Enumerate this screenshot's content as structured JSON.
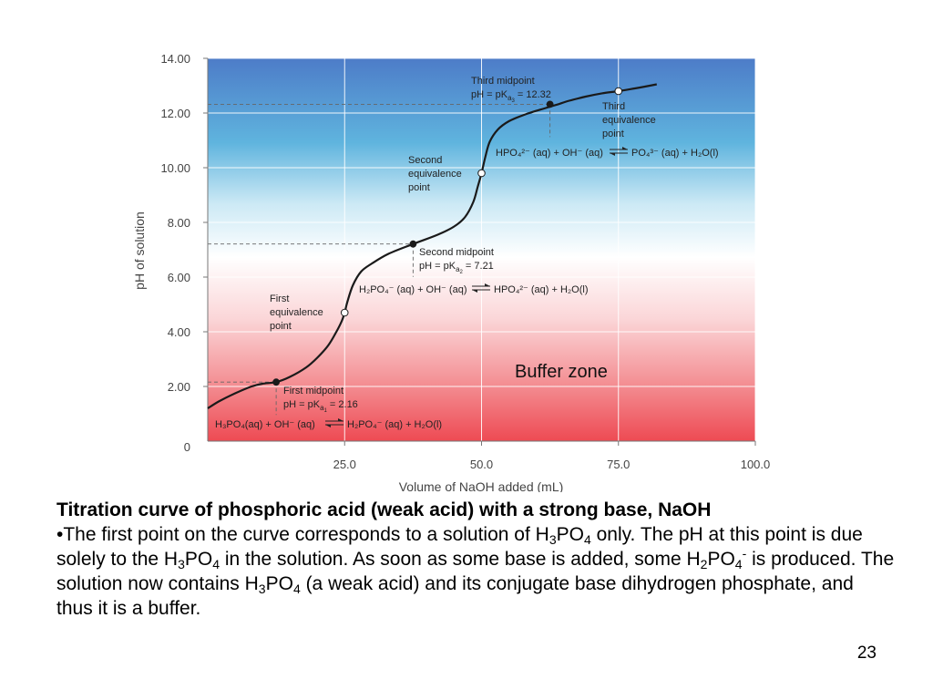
{
  "chart_data": {
    "type": "line",
    "xlabel": "Volume of NaOH added (mL)",
    "ylabel": "pH of solution",
    "xlim": [
      0,
      100
    ],
    "ylim": [
      0,
      14
    ],
    "x_ticks": [
      0,
      25,
      50,
      75,
      100
    ],
    "x_tick_labels": [
      "0",
      "25.0",
      "50.0",
      "75.0",
      "100.0"
    ],
    "y_ticks": [
      2,
      4,
      6,
      8,
      10,
      12,
      14
    ],
    "y_tick_labels": [
      "2.00",
      "4.00",
      "6.00",
      "8.00",
      "10.00",
      "12.00",
      "14.00"
    ],
    "origin_label": "0",
    "background": "vertical gradient blue (high pH) to white to red (low pH)",
    "grid": true,
    "series": [
      {
        "color": "#1a1a1a",
        "x": [
          0,
          2,
          5,
          8,
          10,
          12.5,
          15,
          18,
          20,
          22,
          23.5,
          24.5,
          25,
          25.5,
          26.5,
          28,
          30,
          33,
          37.5,
          42,
          45,
          47,
          48.5,
          49.3,
          50,
          50.7,
          51.5,
          53,
          55,
          58,
          62,
          64,
          66,
          69,
          72,
          75,
          78,
          82
        ],
        "y": [
          1.2,
          1.45,
          1.75,
          2.0,
          2.1,
          2.16,
          2.35,
          2.7,
          3.05,
          3.5,
          4.0,
          4.4,
          4.7,
          5.1,
          5.7,
          6.2,
          6.5,
          6.85,
          7.21,
          7.55,
          7.85,
          8.2,
          8.75,
          9.3,
          9.8,
          10.4,
          10.95,
          11.4,
          11.7,
          11.95,
          12.2,
          12.32,
          12.45,
          12.6,
          12.72,
          12.8,
          12.9,
          13.05
        ]
      }
    ],
    "points": [
      {
        "x": 12.5,
        "y": 2.16,
        "style": "filled",
        "guide": true
      },
      {
        "x": 25,
        "y": 4.7,
        "style": "open"
      },
      {
        "x": 37.5,
        "y": 7.21,
        "style": "filled",
        "guide": true
      },
      {
        "x": 50,
        "y": 9.8,
        "style": "open"
      },
      {
        "x": 62.5,
        "y": 12.32,
        "style": "filled",
        "guide": true
      },
      {
        "x": 75,
        "y": 12.8,
        "style": "open"
      }
    ]
  },
  "annotations": {
    "first_midpoint_title": "First midpoint",
    "first_midpoint_pka": "pH = pK",
    "first_midpoint_sub": "a",
    "first_midpoint_subsub": "1",
    "first_midpoint_value": " = 2.16",
    "first_equivalence_line1": "First",
    "first_equivalence_line2": "equivalence",
    "first_equivalence_line3": "point",
    "second_midpoint_title": "Second midpoint",
    "second_midpoint_pka": "pH = pK",
    "second_midpoint_sub": "a",
    "second_midpoint_subsub": "2",
    "second_midpoint_value": " = 7.21",
    "second_equivalence_line1": "Second",
    "second_equivalence_line2": "equivalence",
    "second_equivalence_line3": "point",
    "third_midpoint_title": "Third midpoint",
    "third_midpoint_pka": "pH = pK",
    "third_midpoint_sub": "a",
    "third_midpoint_subsub": "3",
    "third_midpoint_value": " = 12.32",
    "third_equivalence_line1": "Third",
    "third_equivalence_line2": "equivalence",
    "third_equivalence_line3": "point",
    "buffer_zone": "Buffer zone"
  },
  "equations": {
    "eq1_left": "H₃PO₄(aq) + OH⁻ (aq)",
    "eq1_right": "H₂PO₄⁻ (aq) + H₂O(l)",
    "eq2_left": "H₂PO₄⁻ (aq) + OH⁻ (aq)",
    "eq2_right": "HPO₄²⁻ (aq) + H₂O(l)",
    "eq3_left": "HPO₄²⁻ (aq) + OH⁻ (aq)",
    "eq3_right": "PO₄³⁻ (aq) + H₂O(l)"
  },
  "caption": {
    "heading": "Titration curve of phosphoric acid (weak acid) with a strong base, NaOH",
    "p1": "•The first point on the curve corresponds to a solution of H",
    "p1_sub1": "3",
    "p2": "PO",
    "p2_sub": "4",
    "p3": " only. The pH at this point is due solely to the H",
    "p3_sub": "3",
    "p4": "PO",
    "p4_sub": "4",
    "p5": " in the solution. As soon as some base is added, some H",
    "p5_sub": "2",
    "p6": "PO",
    "p6_sub": "4",
    "p6_sup": "-",
    "p7": " is produced. The solution now contains H",
    "p7_sub": "3",
    "p8": "PO",
    "p8_sub": "4",
    "p9": " (a weak acid) and its conjugate base dihydrogen phosphate, and thus it is a buffer."
  },
  "page_number": "23"
}
